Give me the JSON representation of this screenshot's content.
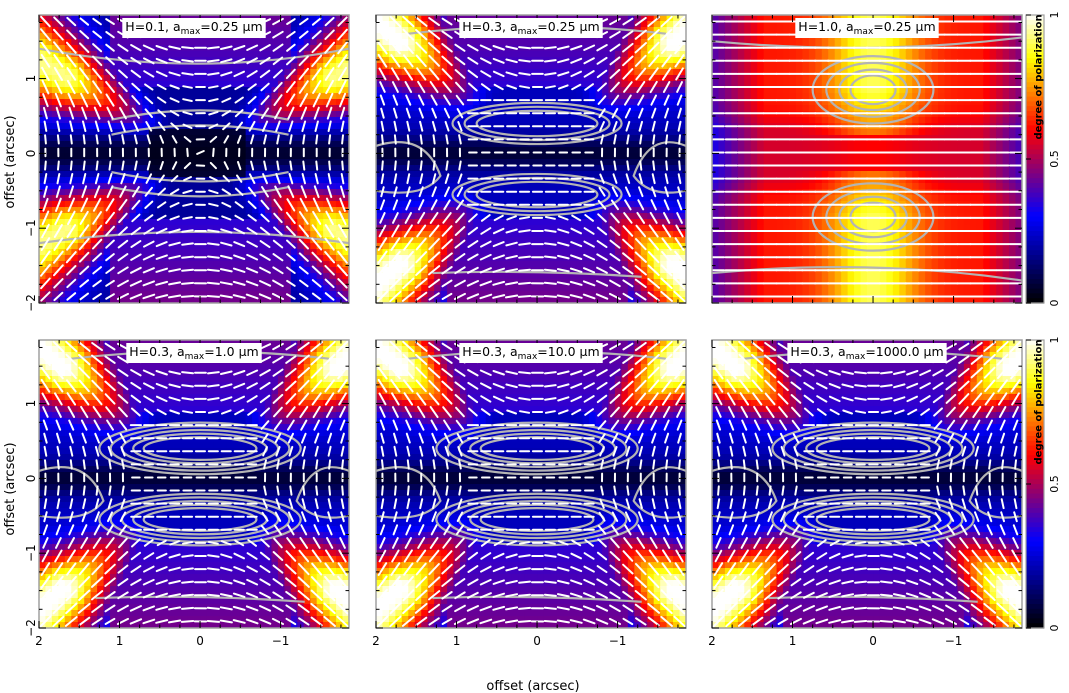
{
  "figure": {
    "xlabel": "offset (arcsec)",
    "ylabel": "offset (arcsec)",
    "colorbar_label": "degree of polarization",
    "colorbar_ticks": [
      "0",
      "0.5",
      "1"
    ]
  },
  "chart_data": [
    {
      "type": "heatmap",
      "title": "H=0.1, a_max=0.25 μm",
      "title_parts": {
        "h": "H=0.1, a",
        "sub": "max",
        "tail": "=0.25 μm"
      },
      "H": 0.1,
      "a_max_um": 0.25,
      "x_ticks": [
        "2",
        "1",
        "0",
        "−1"
      ],
      "y_ticks": [
        "1",
        "0",
        "−1",
        "−2"
      ],
      "xlim": [
        2,
        -2
      ],
      "ylim": [
        -2,
        2
      ]
    },
    {
      "type": "heatmap",
      "title": "H=0.3, a_max=0.25 μm",
      "title_parts": {
        "h": "H=0.3, a",
        "sub": "max",
        "tail": "=0.25 μm"
      },
      "H": 0.3,
      "a_max_um": 0.25,
      "x_ticks": [
        "2",
        "1",
        "0",
        "−1"
      ],
      "y_ticks": [
        "1",
        "0",
        "−1",
        "−2"
      ],
      "xlim": [
        2,
        -2
      ],
      "ylim": [
        -2,
        2
      ]
    },
    {
      "type": "heatmap",
      "title": "H=1.0, a_max=0.25 μm",
      "title_parts": {
        "h": "H=1.0, a",
        "sub": "max",
        "tail": "=0.25 μm"
      },
      "H": 1.0,
      "a_max_um": 0.25,
      "x_ticks": [
        "2",
        "1",
        "0",
        "−1"
      ],
      "y_ticks": [
        "1",
        "0",
        "−1",
        "−2"
      ],
      "xlim": [
        2,
        -2
      ],
      "ylim": [
        -2,
        2
      ]
    },
    {
      "type": "heatmap",
      "title": "H=0.3, a_max=1.0 μm",
      "title_parts": {
        "h": "H=0.3, a",
        "sub": "max",
        "tail": "=1.0 μm"
      },
      "H": 0.3,
      "a_max_um": 1.0,
      "x_ticks": [
        "2",
        "1",
        "0",
        "−1"
      ],
      "y_ticks": [
        "1",
        "0",
        "−1",
        "−2"
      ],
      "xlim": [
        2,
        -2
      ],
      "ylim": [
        -2,
        2
      ]
    },
    {
      "type": "heatmap",
      "title": "H=0.3, a_max=10.0 μm",
      "title_parts": {
        "h": "H=0.3, a",
        "sub": "max",
        "tail": "=10.0 μm"
      },
      "H": 0.3,
      "a_max_um": 10.0,
      "x_ticks": [
        "2",
        "1",
        "0",
        "−1"
      ],
      "y_ticks": [
        "1",
        "0",
        "−1",
        "−2"
      ],
      "xlim": [
        2,
        -2
      ],
      "ylim": [
        -2,
        2
      ]
    },
    {
      "type": "heatmap",
      "title": "H=0.3, a_max=1000.0 μm",
      "title_parts": {
        "h": "H=0.3, a",
        "sub": "max",
        "tail": "=1000.0 μm"
      },
      "H": 0.3,
      "a_max_um": 1000.0,
      "x_ticks": [
        "2",
        "1",
        "0",
        "−1"
      ],
      "y_ticks": [
        "1",
        "0",
        "−1",
        "−2"
      ],
      "xlim": [
        2,
        -2
      ],
      "ylim": [
        -2,
        2
      ]
    }
  ],
  "colors": {
    "colormap": [
      "#000000",
      "#0000ff",
      "#ff0000",
      "#ffff00",
      "#ffffff"
    ],
    "contour": "#b4b4b4",
    "vectors": "#ffffff",
    "frame": "#a0a0a0"
  }
}
